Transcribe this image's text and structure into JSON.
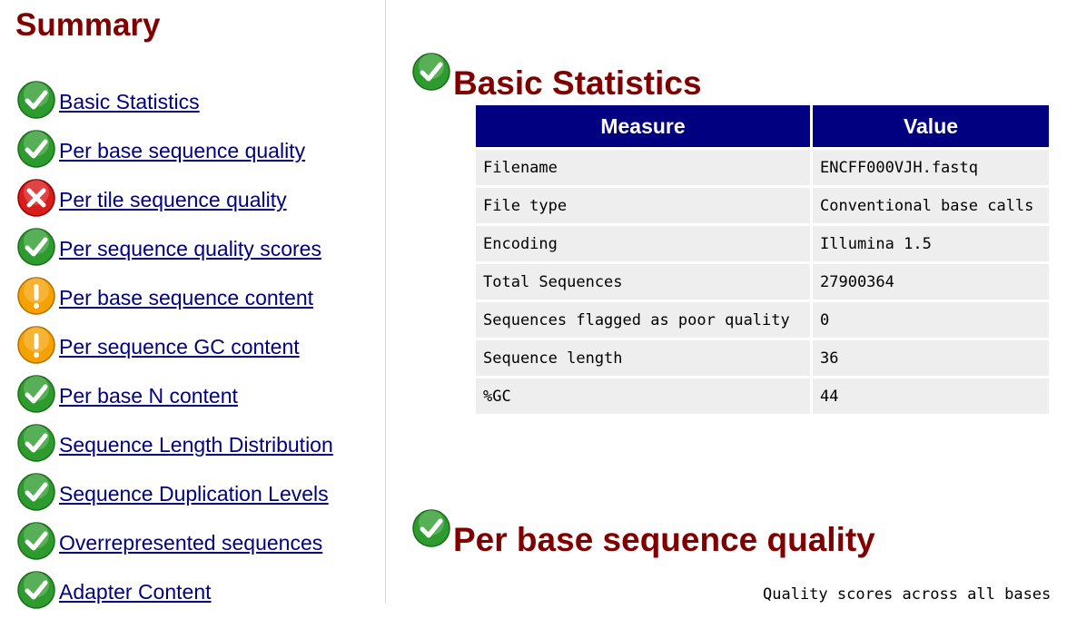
{
  "summary": {
    "title": "Summary",
    "items": [
      {
        "label": "Basic Statistics",
        "status": "pass"
      },
      {
        "label": "Per base sequence quality",
        "status": "pass"
      },
      {
        "label": "Per tile sequence quality",
        "status": "fail"
      },
      {
        "label": "Per sequence quality scores",
        "status": "pass"
      },
      {
        "label": "Per base sequence content",
        "status": "warn"
      },
      {
        "label": "Per sequence GC content",
        "status": "warn"
      },
      {
        "label": "Per base N content",
        "status": "pass"
      },
      {
        "label": "Sequence Length Distribution",
        "status": "pass"
      },
      {
        "label": "Sequence Duplication Levels",
        "status": "pass"
      },
      {
        "label": "Overrepresented sequences",
        "status": "pass"
      },
      {
        "label": "Adapter Content",
        "status": "pass"
      }
    ]
  },
  "basic_statistics": {
    "title": "Basic Statistics",
    "status": "pass",
    "headers": {
      "measure": "Measure",
      "value": "Value"
    },
    "rows": [
      {
        "measure": "Filename",
        "value": "ENCFF000VJH.fastq"
      },
      {
        "measure": "File type",
        "value": "Conventional base calls"
      },
      {
        "measure": "Encoding",
        "value": "Illumina 1.5"
      },
      {
        "measure": "Total Sequences",
        "value": "27900364"
      },
      {
        "measure": "Sequences flagged as poor quality",
        "value": "0"
      },
      {
        "measure": "Sequence length",
        "value": "36"
      },
      {
        "measure": "%GC",
        "value": "44"
      }
    ]
  },
  "per_base_sequence_quality": {
    "title": "Per base sequence quality",
    "status": "pass",
    "chart_title": "Quality scores across all bases"
  },
  "colors": {
    "heading": "#800000",
    "link": "#000080",
    "table_header": "#000080",
    "table_cell": "#eeeeee",
    "pass": "#2e9b2e",
    "warn": "#f5a100",
    "fail": "#d91c1c"
  }
}
